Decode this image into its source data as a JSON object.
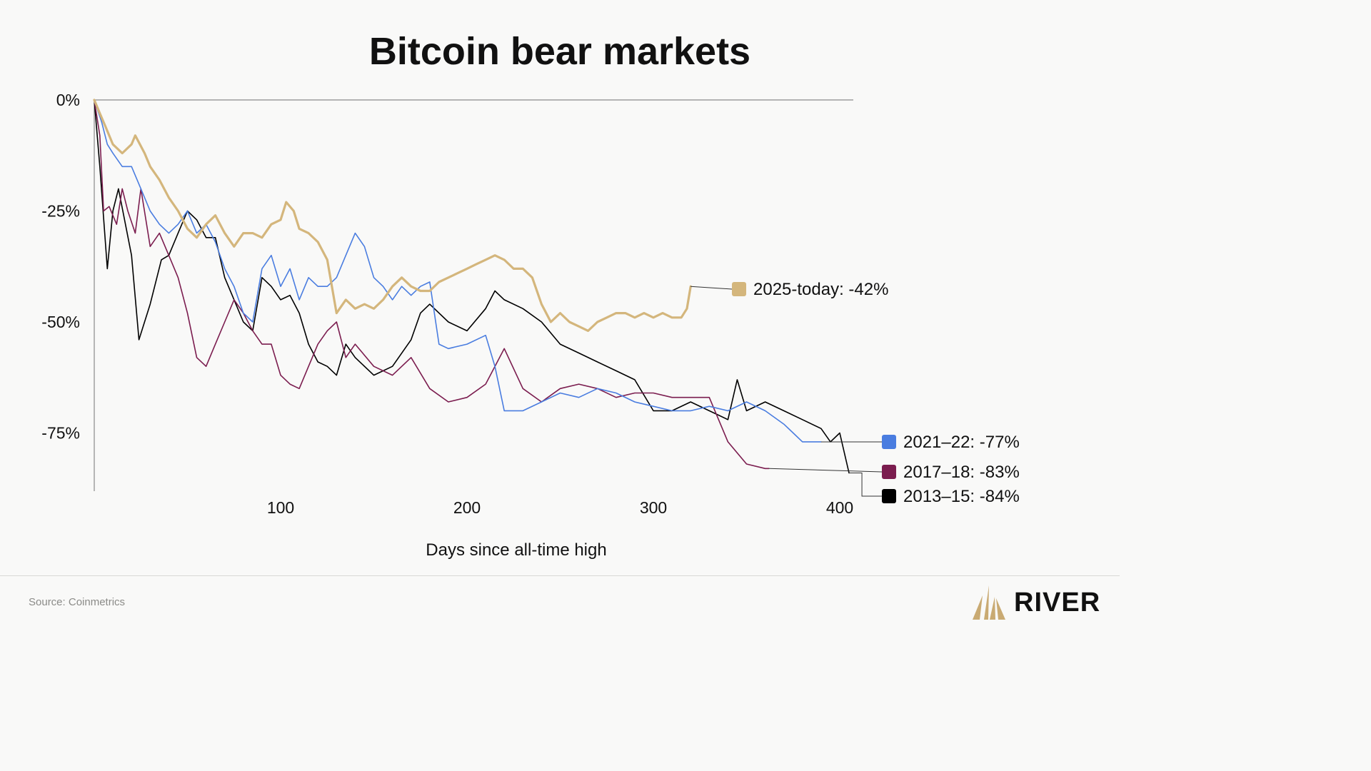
{
  "brand": {
    "name": "RIVER",
    "accent": "#c9aa72"
  },
  "footer": {
    "source": "Source: Coinmetrics"
  },
  "chart_data": {
    "type": "line",
    "title": "Bitcoin bear markets",
    "xlabel": "Days since all-time high",
    "ylabel": "",
    "xlim": [
      0,
      410
    ],
    "ylim": [
      -88,
      0
    ],
    "x_ticks": [
      100,
      200,
      300,
      400
    ],
    "y_ticks": [
      0,
      -25,
      -50,
      -75
    ],
    "y_tick_labels": [
      "0%",
      "-25%",
      "-50%",
      "-75%"
    ],
    "legend": "right",
    "series": [
      {
        "name": "2013–15",
        "label": "2013–15: -84%",
        "final": -84,
        "color": "#000000",
        "x": [
          0,
          3,
          7,
          10,
          13,
          20,
          24,
          30,
          36,
          40,
          45,
          50,
          55,
          60,
          65,
          70,
          75,
          80,
          85,
          90,
          95,
          100,
          105,
          110,
          115,
          120,
          125,
          130,
          135,
          140,
          150,
          160,
          170,
          175,
          180,
          190,
          200,
          210,
          215,
          220,
          230,
          240,
          250,
          260,
          270,
          280,
          290,
          300,
          310,
          320,
          330,
          340,
          345,
          350,
          360,
          370,
          380,
          390,
          395,
          400,
          405
        ],
        "values": [
          0,
          -15,
          -38,
          -25,
          -20,
          -35,
          -54,
          -46,
          -36,
          -35,
          -30,
          -25,
          -27,
          -31,
          -31,
          -40,
          -45,
          -50,
          -52,
          -40,
          -42,
          -45,
          -44,
          -48,
          -55,
          -59,
          -60,
          -62,
          -55,
          -58,
          -62,
          -60,
          -54,
          -48,
          -46,
          -50,
          -52,
          -47,
          -43,
          -45,
          -47,
          -50,
          -55,
          -57,
          -59,
          -61,
          -63,
          -70,
          -70,
          -68,
          -70,
          -72,
          -63,
          -70,
          -68,
          -70,
          -72,
          -74,
          -77,
          -75,
          -84
        ]
      },
      {
        "name": "2017–18",
        "label": "2017–18: -83%",
        "final": -83,
        "color": "#7b1d4f",
        "x": [
          0,
          3,
          5,
          8,
          12,
          15,
          18,
          22,
          25,
          30,
          35,
          40,
          45,
          50,
          55,
          60,
          65,
          70,
          75,
          80,
          85,
          90,
          95,
          100,
          105,
          110,
          115,
          120,
          125,
          130,
          135,
          140,
          150,
          160,
          170,
          180,
          190,
          200,
          210,
          220,
          230,
          240,
          250,
          260,
          270,
          280,
          290,
          300,
          310,
          320,
          330,
          340,
          350,
          360,
          362
        ],
        "values": [
          0,
          -8,
          -25,
          -24,
          -28,
          -20,
          -25,
          -30,
          -20,
          -33,
          -30,
          -35,
          -40,
          -48,
          -58,
          -60,
          -55,
          -50,
          -45,
          -48,
          -52,
          -55,
          -55,
          -62,
          -64,
          -65,
          -60,
          -55,
          -52,
          -50,
          -58,
          -55,
          -60,
          -62,
          -58,
          -65,
          -68,
          -67,
          -64,
          -56,
          -65,
          -68,
          -65,
          -64,
          -65,
          -67,
          -66,
          -66,
          -67,
          -67,
          -67,
          -77,
          -82,
          -83,
          -83
        ]
      },
      {
        "name": "2021–22",
        "label": "2021–22: -77%",
        "final": -77,
        "color": "#4a7de0",
        "x": [
          0,
          4,
          7,
          10,
          15,
          20,
          25,
          30,
          35,
          40,
          45,
          50,
          55,
          60,
          65,
          70,
          75,
          80,
          85,
          90,
          95,
          100,
          105,
          110,
          115,
          120,
          125,
          130,
          135,
          140,
          145,
          150,
          155,
          160,
          165,
          170,
          175,
          180,
          185,
          190,
          200,
          210,
          215,
          220,
          225,
          230,
          240,
          250,
          260,
          270,
          280,
          290,
          300,
          310,
          320,
          330,
          340,
          350,
          360,
          370,
          375,
          380,
          390
        ],
        "values": [
          0,
          -5,
          -10,
          -12,
          -15,
          -15,
          -20,
          -25,
          -28,
          -30,
          -28,
          -25,
          -30,
          -28,
          -32,
          -38,
          -42,
          -48,
          -50,
          -38,
          -35,
          -42,
          -38,
          -45,
          -40,
          -42,
          -42,
          -40,
          -35,
          -30,
          -33,
          -40,
          -42,
          -45,
          -42,
          -44,
          -42,
          -41,
          -55,
          -56,
          -55,
          -53,
          -60,
          -70,
          -70,
          -70,
          -68,
          -66,
          -67,
          -65,
          -66,
          -68,
          -69,
          -70,
          -70,
          -69,
          -70,
          -68,
          -70,
          -73,
          -75,
          -77,
          -77
        ]
      },
      {
        "name": "2025-today",
        "label": "2025-today: -42%",
        "final": -42,
        "color": "#d4b67c",
        "x": [
          0,
          3,
          6,
          10,
          15,
          20,
          22,
          27,
          30,
          35,
          40,
          45,
          50,
          55,
          60,
          65,
          70,
          75,
          80,
          85,
          90,
          95,
          100,
          103,
          107,
          110,
          115,
          120,
          125,
          130,
          135,
          140,
          145,
          150,
          155,
          160,
          165,
          170,
          175,
          180,
          185,
          190,
          195,
          200,
          205,
          210,
          215,
          220,
          225,
          230,
          235,
          240,
          245,
          250,
          255,
          260,
          265,
          270,
          275,
          280,
          285,
          290,
          295,
          300,
          305,
          310,
          315,
          318,
          320
        ],
        "values": [
          0,
          -3,
          -6,
          -10,
          -12,
          -10,
          -8,
          -12,
          -15,
          -18,
          -22,
          -25,
          -29,
          -31,
          -28,
          -26,
          -30,
          -33,
          -30,
          -30,
          -31,
          -28,
          -27,
          -23,
          -25,
          -29,
          -30,
          -32,
          -36,
          -48,
          -45,
          -47,
          -46,
          -47,
          -45,
          -42,
          -40,
          -42,
          -43,
          -43,
          -41,
          -40,
          -39,
          -38,
          -37,
          -36,
          -35,
          -36,
          -38,
          -38,
          -40,
          -46,
          -50,
          -48,
          -50,
          -51,
          -52,
          -50,
          -49,
          -48,
          -48,
          -49,
          -48,
          -49,
          -48,
          -49,
          -49,
          -47,
          -42
        ]
      }
    ]
  }
}
